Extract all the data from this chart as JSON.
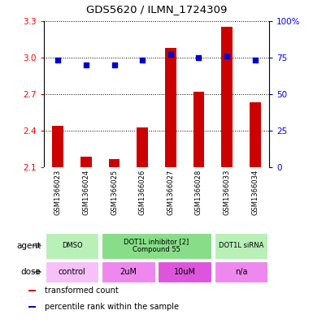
{
  "title": "GDS5620 / ILMN_1724309",
  "samples": [
    "GSM1366023",
    "GSM1366024",
    "GSM1366025",
    "GSM1366026",
    "GSM1366027",
    "GSM1366028",
    "GSM1366033",
    "GSM1366034"
  ],
  "bar_values": [
    2.44,
    2.19,
    2.17,
    2.43,
    3.08,
    2.72,
    3.25,
    2.63
  ],
  "dot_values": [
    73,
    70,
    70,
    73,
    77,
    75,
    76,
    73
  ],
  "ylim_left": [
    2.1,
    3.3
  ],
  "ylim_right": [
    0,
    100
  ],
  "yticks_left": [
    2.1,
    2.4,
    2.7,
    3.0,
    3.3
  ],
  "yticks_right": [
    0,
    25,
    50,
    75,
    100
  ],
  "bar_color": "#cc0000",
  "dot_color": "#0000cc",
  "dot_size": 18,
  "grid_color": "black",
  "agent_groups": [
    {
      "label": "DMSO",
      "color": "#b8f0b8",
      "span": [
        0,
        2
      ]
    },
    {
      "label": "DOT1L inhibitor [2]\nCompound 55",
      "color": "#88dd88",
      "span": [
        2,
        6
      ]
    },
    {
      "label": "DOT1L siRNA",
      "color": "#b8f0b8",
      "span": [
        6,
        8
      ]
    }
  ],
  "dose_groups": [
    {
      "label": "control",
      "color": "#f8c0f8",
      "span": [
        0,
        2
      ]
    },
    {
      "label": "2uM",
      "color": "#ee88ee",
      "span": [
        2,
        4
      ]
    },
    {
      "label": "10uM",
      "color": "#dd55dd",
      "span": [
        4,
        6
      ]
    },
    {
      "label": "n/a",
      "color": "#ee88ee",
      "span": [
        6,
        8
      ]
    }
  ],
  "legend_items": [
    {
      "label": "transformed count",
      "color": "#cc0000"
    },
    {
      "label": "percentile rank within the sample",
      "color": "#0000cc"
    }
  ],
  "agent_label": "agent",
  "dose_label": "dose",
  "bg_color": "#ffffff",
  "plot_bg": "#ffffff",
  "sample_bg": "#cccccc",
  "bar_width": 0.4
}
